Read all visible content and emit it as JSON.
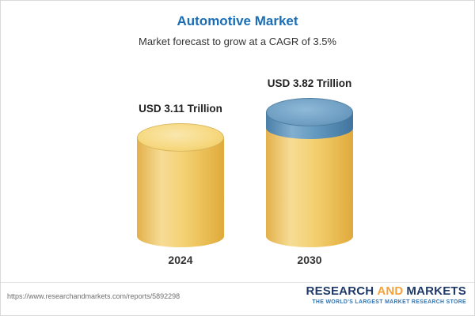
{
  "header": {
    "title": "Automotive Market",
    "subtitle": "Market forecast to grow at a CAGR of 3.5%"
  },
  "chart_data": {
    "type": "bar",
    "style": "3d-cylinder",
    "categories": [
      "2024",
      "2030"
    ],
    "values": [
      3.11,
      3.82
    ],
    "value_labels": [
      "USD 3.11 Trillion",
      "USD 3.82 Trillion"
    ],
    "unit": "USD Trillion",
    "title": "Automotive Market",
    "subtitle": "Market forecast to grow at a CAGR of 3.5%",
    "cagr": "3.5%",
    "xlabel": "",
    "ylabel": "",
    "legend": "none",
    "colors": {
      "bar_gold": "#F3D071",
      "growth_segment_blue": "#6097BD",
      "title_blue": "#1B6DB5"
    }
  },
  "footer": {
    "url": "https://www.researchandmarkets.com/reports/5892298",
    "logo": {
      "research": "RESEARCH",
      "and": "AND",
      "markets": "MARKETS",
      "tagline": "THE WORLD'S LARGEST MARKET RESEARCH STORE"
    }
  }
}
